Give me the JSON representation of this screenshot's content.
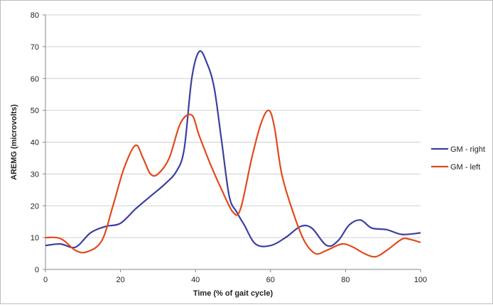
{
  "chart_data": {
    "type": "line",
    "title": "",
    "xlabel": "Time (% of gait cycle)",
    "ylabel": "AREMG (microvolts)",
    "xlim": [
      0,
      100
    ],
    "ylim": [
      0,
      80
    ],
    "x_ticks": [
      0,
      20,
      40,
      60,
      80,
      100
    ],
    "y_ticks": [
      0,
      10,
      20,
      30,
      40,
      50,
      60,
      70,
      80
    ],
    "grid": "horizontal",
    "legend_position": "right",
    "series": [
      {
        "name": "GM - right",
        "color": "#3b3fa0",
        "points": [
          [
            0,
            7.5
          ],
          [
            4,
            8
          ],
          [
            8,
            7
          ],
          [
            12,
            11.5
          ],
          [
            16,
            13.5
          ],
          [
            20,
            14.5
          ],
          [
            24,
            19
          ],
          [
            28,
            23
          ],
          [
            32,
            27
          ],
          [
            35,
            31
          ],
          [
            37,
            38
          ],
          [
            39,
            60
          ],
          [
            41,
            68.5
          ],
          [
            43,
            65
          ],
          [
            45,
            57
          ],
          [
            47,
            40
          ],
          [
            49,
            23
          ],
          [
            51,
            18
          ],
          [
            53,
            14
          ],
          [
            56,
            8
          ],
          [
            60,
            7.5
          ],
          [
            64,
            10
          ],
          [
            68,
            13.5
          ],
          [
            71,
            13
          ],
          [
            75,
            7.5
          ],
          [
            78,
            9
          ],
          [
            81,
            14
          ],
          [
            84,
            15.5
          ],
          [
            87,
            13
          ],
          [
            91,
            12.5
          ],
          [
            95,
            11
          ],
          [
            100,
            11.5
          ]
        ]
      },
      {
        "name": "GM - left",
        "color": "#e2491d",
        "points": [
          [
            0,
            10
          ],
          [
            3,
            10
          ],
          [
            5,
            9
          ],
          [
            8,
            6
          ],
          [
            11,
            5.5
          ],
          [
            15,
            9
          ],
          [
            18,
            20
          ],
          [
            21,
            32
          ],
          [
            24,
            39
          ],
          [
            26,
            35
          ],
          [
            28,
            30
          ],
          [
            30,
            30
          ],
          [
            33,
            35
          ],
          [
            36,
            46
          ],
          [
            39,
            48.5
          ],
          [
            41,
            42
          ],
          [
            44,
            33
          ],
          [
            47,
            25
          ],
          [
            50,
            18
          ],
          [
            52,
            19
          ],
          [
            55,
            35
          ],
          [
            57.5,
            46
          ],
          [
            59.5,
            50
          ],
          [
            61,
            45
          ],
          [
            63,
            30
          ],
          [
            66,
            18
          ],
          [
            69,
            9
          ],
          [
            72,
            5
          ],
          [
            75,
            6
          ],
          [
            79,
            8
          ],
          [
            82,
            7
          ],
          [
            85,
            5
          ],
          [
            88,
            4
          ],
          [
            91,
            6
          ],
          [
            95,
            9.5
          ],
          [
            97,
            9.5
          ],
          [
            100,
            8.5
          ]
        ]
      }
    ]
  }
}
